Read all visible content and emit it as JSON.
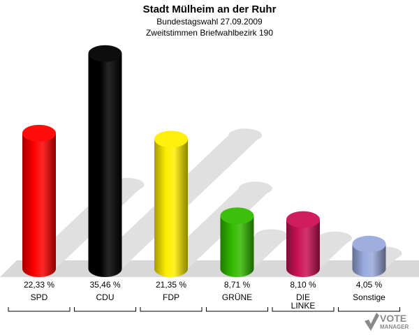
{
  "header": {
    "title": "Stadt Mülheim an der Ruhr",
    "subtitle1": "Bundestagswahl 27.09.2009",
    "subtitle2": "Zweitstimmen Briefwahlbezirk 190"
  },
  "chart_data": {
    "type": "bar",
    "title": "Stadt Mülheim an der Ruhr",
    "categories": [
      "SPD",
      "CDU",
      "FDP",
      "GRÜNE",
      "DIE LINKE",
      "Sonstige"
    ],
    "values": [
      22.33,
      35.46,
      21.35,
      8.71,
      8.1,
      4.05
    ],
    "value_labels": [
      "22,33 %",
      "35,46 %",
      "21,35 %",
      "8,71 %",
      "8,10 %",
      "4,05 %"
    ],
    "colors": [
      "#ff0000",
      "#000000",
      "#ffee00",
      "#33bb00",
      "#cc1155",
      "#99aadd"
    ],
    "ylim": [
      0,
      36
    ],
    "grid": false,
    "legend": "none"
  },
  "logo": {
    "line1": "VOTE",
    "line2": "MANAGER"
  }
}
